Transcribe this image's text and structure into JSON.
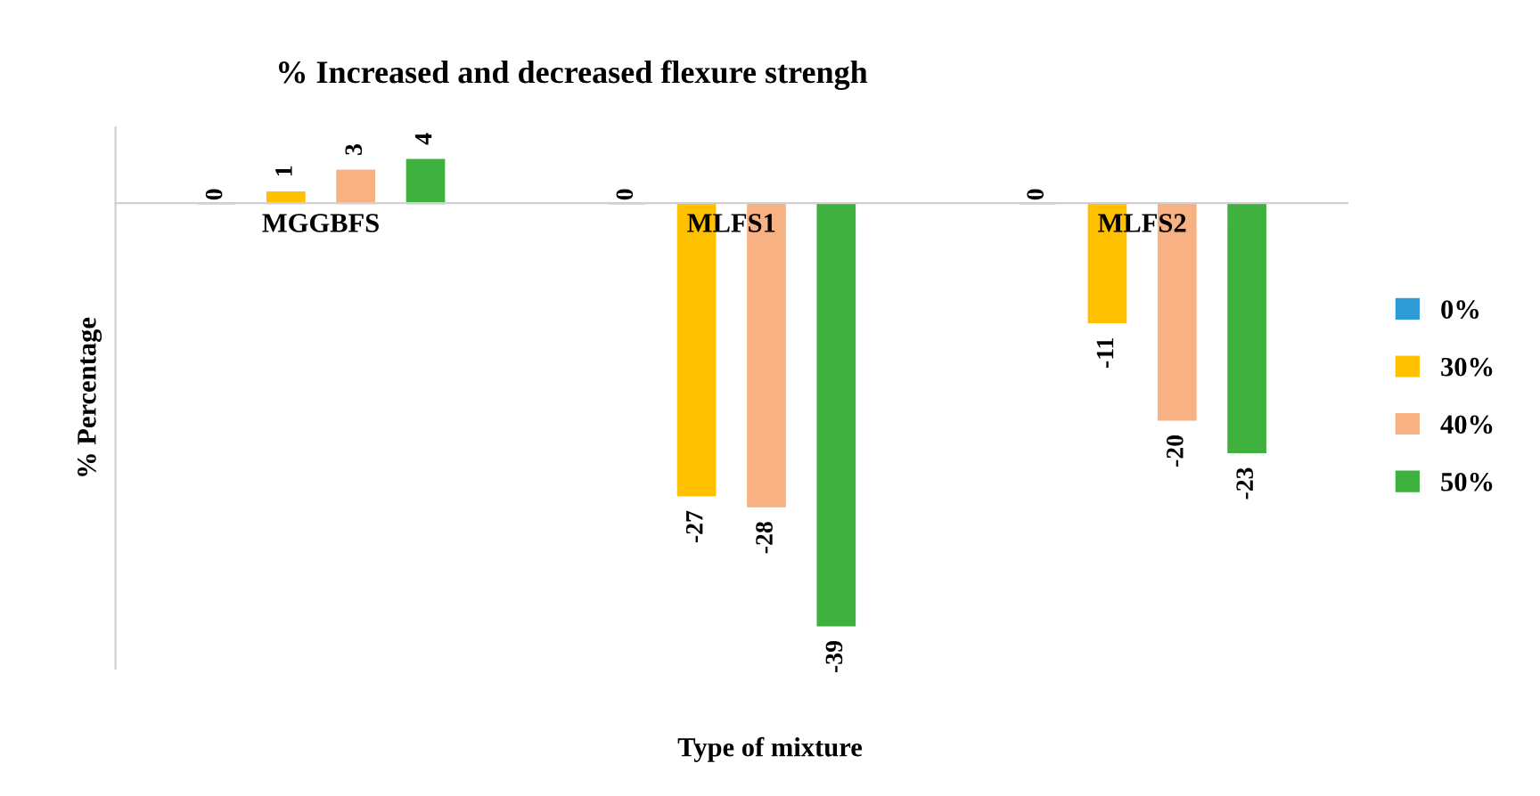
{
  "chart_data": {
    "type": "bar",
    "title": "% Increased and decreased flexure strengh",
    "xlabel": "Type of mixture",
    "ylabel": "% Percentage",
    "categories": [
      "MGGBFS",
      "MLFS1",
      "MLFS2"
    ],
    "series": [
      {
        "name": "0%",
        "color": "#2e9bd6",
        "values": [
          0,
          0,
          0
        ]
      },
      {
        "name": "30%",
        "color": "#ffc000",
        "values": [
          1,
          -27,
          -11
        ]
      },
      {
        "name": "40%",
        "color": "#f8b183",
        "values": [
          3,
          -28,
          -20
        ]
      },
      {
        "name": "50%",
        "color": "#3fb13f",
        "values": [
          4,
          -39,
          -23
        ]
      }
    ],
    "data_labels": true,
    "legend": "right",
    "tick_labels": "x",
    "grid": false
  }
}
